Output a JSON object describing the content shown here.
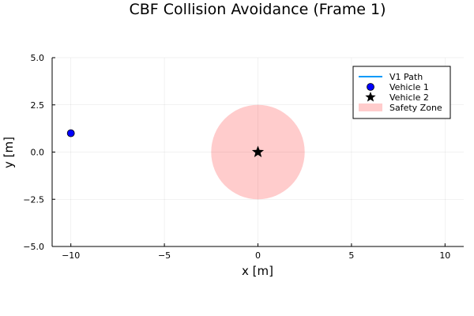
{
  "chart_data": {
    "type": "scatter",
    "title": "CBF Collision Avoidance (Frame 1)",
    "xlabel": "x [m]",
    "ylabel": "y [m]",
    "xlim": [
      -11,
      11
    ],
    "ylim": [
      -5,
      5
    ],
    "xticks": [
      -10,
      -5,
      0,
      5,
      10
    ],
    "xtick_labels": [
      "−10",
      "−5",
      "0",
      "5",
      "10"
    ],
    "yticks": [
      -5,
      -2.5,
      0,
      2.5,
      5
    ],
    "ytick_labels": [
      "−5.0",
      "−2.5",
      "0.0",
      "2.5",
      "5.0"
    ],
    "grid": true,
    "legend_position": "top-right",
    "series": [
      {
        "name": "V1 Path",
        "kind": "line",
        "color": "#009af9",
        "x": [
          -10
        ],
        "y": [
          1
        ]
      },
      {
        "name": "Vehicle 1",
        "kind": "circle-marker",
        "color": "#0000ff",
        "x": [
          -10
        ],
        "y": [
          1
        ]
      },
      {
        "name": "Vehicle 2",
        "kind": "star-marker",
        "color": "#000000",
        "x": [
          0
        ],
        "y": [
          0
        ]
      },
      {
        "name": "Safety Zone",
        "kind": "shaded-circle",
        "color": "#ff0000",
        "opacity": 0.2,
        "center": [
          0,
          0
        ],
        "radius": 2.5
      }
    ]
  }
}
